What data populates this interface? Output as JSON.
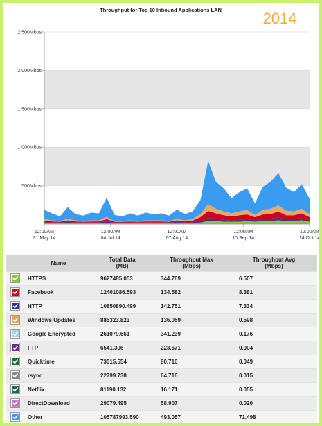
{
  "chart_data": {
    "type": "stacked-area",
    "title": "Throughput for Top 10 Inbound Applications LAN",
    "annotation": "2014",
    "x": [
      "2014-05-31",
      "2014-06-04",
      "2014-06-08",
      "2014-06-12",
      "2014-06-16",
      "2014-06-20",
      "2014-06-24",
      "2014-06-28",
      "2014-07-02",
      "2014-07-06",
      "2014-07-10",
      "2014-07-14",
      "2014-07-18",
      "2014-07-22",
      "2014-07-26",
      "2014-07-30",
      "2014-08-03",
      "2014-08-07",
      "2014-08-11",
      "2014-08-15",
      "2014-08-19",
      "2014-08-23",
      "2014-08-27",
      "2014-08-31",
      "2014-09-04",
      "2014-09-08",
      "2014-09-12",
      "2014-09-16",
      "2014-09-20",
      "2014-09-24",
      "2014-09-28",
      "2014-10-02",
      "2014-10-06",
      "2014-10-10",
      "2014-10-14"
    ],
    "xlim": [
      "2014-05-31",
      "2014-10-14"
    ],
    "xticks": [
      {
        "value": "2014-05-31",
        "label": "12:00AM 31 May 14"
      },
      {
        "value": "2014-07-04",
        "label": "12:00AM 04 Jul 14"
      },
      {
        "value": "2014-08-07",
        "label": "12:00AM 07 Aug 14"
      },
      {
        "value": "2014-09-10",
        "label": "12:00AM 10 Sep 14"
      },
      {
        "value": "2014-10-14",
        "label": "12:00AM 14 Oct 14"
      }
    ],
    "ylim": [
      0,
      2500
    ],
    "yticks": [
      {
        "value": 500,
        "label": "500Mbps"
      },
      {
        "value": 1000,
        "label": "1,000Mbps"
      },
      {
        "value": 1500,
        "label": "1,500Mbps"
      },
      {
        "value": 2000,
        "label": "2,000Mbps"
      },
      {
        "value": 2500,
        "label": "2,500Mbps"
      }
    ],
    "grid": true,
    "series": [
      {
        "color": "#8dc63f",
        "values": [
          10,
          10,
          10,
          15,
          10,
          10,
          10,
          10,
          15,
          10,
          10,
          10,
          10,
          10,
          10,
          10,
          10,
          15,
          10,
          10,
          20,
          40,
          40,
          30,
          30,
          30,
          40,
          30,
          40,
          40,
          50,
          40,
          40,
          50,
          30
        ]
      },
      {
        "color": "#4b2e8a",
        "values": [
          15,
          10,
          10,
          15,
          10,
          10,
          10,
          10,
          20,
          10,
          10,
          10,
          10,
          10,
          10,
          10,
          10,
          15,
          10,
          15,
          20,
          40,
          30,
          25,
          20,
          25,
          25,
          20,
          25,
          30,
          35,
          25,
          25,
          30,
          20
        ]
      },
      {
        "color": "#d0021b",
        "values": [
          20,
          15,
          10,
          20,
          15,
          10,
          15,
          15,
          30,
          10,
          10,
          15,
          10,
          15,
          15,
          15,
          10,
          20,
          15,
          20,
          50,
          90,
          70,
          60,
          50,
          60,
          60,
          40,
          60,
          60,
          80,
          50,
          50,
          60,
          40
        ]
      },
      {
        "color": "#e8a868",
        "values": [
          20,
          15,
          10,
          20,
          15,
          10,
          15,
          15,
          30,
          10,
          10,
          15,
          10,
          15,
          15,
          15,
          10,
          20,
          15,
          20,
          40,
          90,
          60,
          50,
          40,
          50,
          60,
          30,
          60,
          70,
          80,
          60,
          50,
          60,
          40
        ]
      },
      {
        "color": "#3a9bf0",
        "values": [
          120,
          90,
          60,
          150,
          80,
          70,
          100,
          90,
          250,
          80,
          60,
          90,
          70,
          100,
          80,
          90,
          70,
          120,
          80,
          100,
          180,
          560,
          350,
          300,
          200,
          250,
          280,
          150,
          300,
          350,
          420,
          300,
          250,
          320,
          200
        ]
      }
    ]
  },
  "table": {
    "headers": [
      [
        "Name"
      ],
      [
        "Total Data",
        "(MB)"
      ],
      [
        "Throughput Max",
        "(Mbps)"
      ],
      [
        "Throughput Avg",
        "(Mbps)"
      ]
    ],
    "rows": [
      {
        "color": "#8dc63f",
        "cells": [
          "HTTPS",
          "9627485.053",
          "344.769",
          "6.507"
        ]
      },
      {
        "color": "#d0021b",
        "cells": [
          "Facebook",
          "12401086.593",
          "134.582",
          "8.381"
        ]
      },
      {
        "color": "#2e3192",
        "cells": [
          "HTTP",
          "10850890.499",
          "142.751",
          "7.334"
        ]
      },
      {
        "color": "#f7a035",
        "cells": [
          "Windows Updates",
          "885323.823",
          "136.059",
          "0.598"
        ]
      },
      {
        "color": "#9fd3f5",
        "cells": [
          "Google Encrypted",
          "261079.661",
          "341.239",
          "0.176"
        ]
      },
      {
        "color": "#6a2c91",
        "cells": [
          "FTP",
          "6541.306",
          "223.671",
          "0.004"
        ]
      },
      {
        "color": "#1e6b2e",
        "cells": [
          "Quicktime",
          "73015.554",
          "80.710",
          "0.049"
        ]
      },
      {
        "color": "#888888",
        "cells": [
          "rsync",
          "22799.738",
          "64.716",
          "0.015"
        ]
      },
      {
        "color": "#1a6b5e",
        "cells": [
          "Netflix",
          "81190.132",
          "16.171",
          "0.055"
        ]
      },
      {
        "color": "#d070d0",
        "cells": [
          "DirectDownload",
          "29079.495",
          "58.907",
          "0.020"
        ]
      },
      {
        "color": "#3399ff",
        "cells": [
          "Other",
          "105787993.590",
          "493.057",
          "71.498"
        ]
      }
    ]
  }
}
